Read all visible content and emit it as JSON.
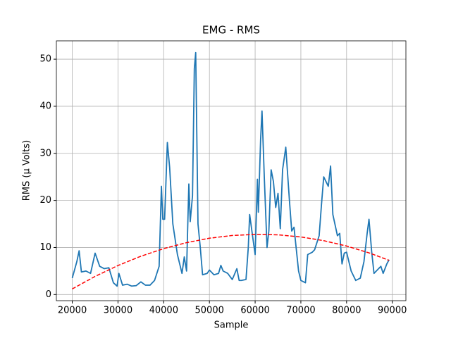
{
  "chart_data": {
    "type": "line",
    "title": "EMG - RMS",
    "x_label": "Sample",
    "y_label": "RMS (µ Volts)",
    "xlim": [
      16525,
      92975
    ],
    "ylim": [
      -1.3,
      53.9
    ],
    "xticks": [
      20000,
      30000,
      40000,
      50000,
      60000,
      70000,
      80000,
      90000
    ],
    "yticks": [
      0,
      10,
      20,
      30,
      40,
      50
    ],
    "grid": true,
    "series": [
      {
        "color": "#1f77b4",
        "dash": "solid",
        "x": [
          20000,
          21000,
          21500,
          22000,
          23000,
          24000,
          25000,
          26000,
          27000,
          28000,
          29000,
          29800,
          30200,
          31000,
          32000,
          33000,
          34000,
          35000,
          36000,
          37000,
          38000,
          39000,
          39500,
          39800,
          40200,
          40800,
          41300,
          42000,
          43000,
          44000,
          44500,
          45000,
          45500,
          45800,
          46300,
          46700,
          47000,
          47500,
          48000,
          48500,
          49500,
          50000,
          51000,
          52000,
          52500,
          53000,
          54000,
          55000,
          56000,
          56500,
          57000,
          58000,
          58500,
          58800,
          59500,
          60000,
          60500,
          60700,
          61200,
          61500,
          62000,
          62600,
          63000,
          63500,
          64000,
          64500,
          65000,
          65500,
          66000,
          66700,
          67500,
          68000,
          68500,
          69500,
          70000,
          71000,
          71500,
          72500,
          73000,
          74000,
          74500,
          75000,
          76000,
          76500,
          77000,
          78000,
          78500,
          79000,
          79500,
          80000,
          81000,
          82000,
          83000,
          83800,
          84500,
          84900,
          85500,
          86000,
          87000,
          87500,
          88000,
          88800,
          89300
        ],
        "values": [
          3.5,
          7,
          9.3,
          4.8,
          5,
          4.5,
          8.8,
          6,
          5.5,
          5.7,
          2.5,
          1.8,
          4.5,
          2,
          2.2,
          1.8,
          1.9,
          2.7,
          2,
          2,
          3,
          6,
          23,
          16,
          16,
          32.3,
          27,
          15,
          8.5,
          4.5,
          8,
          5,
          23.5,
          15.5,
          21,
          48,
          51.4,
          15,
          10,
          4.2,
          4.5,
          5.2,
          4.2,
          4.5,
          6.2,
          5,
          4.5,
          3.2,
          5.5,
          3,
          3,
          3.2,
          10,
          17,
          12,
          8.5,
          24.5,
          17.5,
          33,
          39,
          25,
          10,
          13.5,
          26.5,
          24,
          18.5,
          21.5,
          14,
          26.5,
          31.3,
          20,
          13.5,
          14.3,
          5,
          3,
          2.5,
          8.5,
          9,
          9.5,
          12.5,
          19,
          25,
          23,
          27.3,
          17,
          12.5,
          13,
          6.5,
          8.8,
          9,
          5,
          3,
          3.5,
          7,
          13,
          16,
          9,
          4.5,
          5.5,
          6,
          4.5,
          6.5,
          7.4
        ]
      },
      {
        "color": "#ff0000",
        "dash": "dashed",
        "x": [
          20000,
          25000,
          30000,
          35000,
          40000,
          45000,
          50000,
          55000,
          60000,
          65000,
          70000,
          75000,
          80000,
          85000,
          89300
        ],
        "values": [
          1.2,
          3.86,
          6.17,
          8.14,
          9.76,
          11.03,
          11.97,
          12.55,
          12.79,
          12.69,
          12.24,
          11.45,
          10.31,
          8.83,
          7.27
        ]
      }
    ]
  }
}
